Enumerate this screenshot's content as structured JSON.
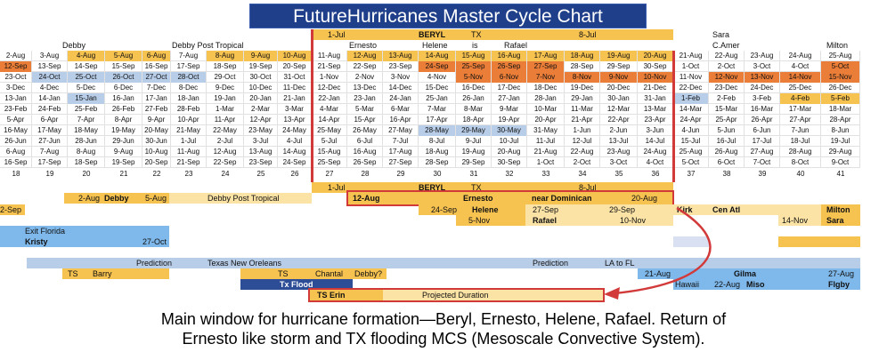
{
  "title": "FutureHurricanes Master Cycle Chart",
  "colors": {
    "title_bg": "#1f3f8a",
    "yellow": "#f6c250",
    "light_yellow": "#fbe3a5",
    "orange": "#ea7d37",
    "light_blue": "#b8cde8",
    "blue": "#7fb8ea",
    "dark_blue": "#2d4d96",
    "red_line": "#d23a3a"
  },
  "top_labels": {
    "jul1": "1-Jul",
    "beryl": "BERYL",
    "tx": "TX",
    "jul8": "8-Jul",
    "sara": "Sara",
    "debby": "Debby",
    "debby_post": "Debby Post Tropical",
    "ernesto": "Ernesto",
    "helene": "Helene",
    "is": "is",
    "rafael": "Rafael",
    "camer": "C.Amer",
    "milton": "Milton"
  },
  "date_rows": [
    [
      "2-Aug",
      "3-Aug",
      "4-Aug",
      "5-Aug",
      "6-Aug",
      "7-Aug",
      "8-Aug",
      "9-Aug",
      "10-Aug",
      "11-Aug",
      "12-Aug",
      "13-Aug",
      "14-Aug",
      "15-Aug",
      "16-Aug",
      "17-Aug",
      "18-Aug",
      "19-Aug",
      "20-Aug",
      "21-Aug",
      "22-Aug",
      "23-Aug",
      "24-Aug",
      "25-Aug"
    ],
    [
      "12-Sep",
      "13-Sep",
      "14-Sep",
      "15-Sep",
      "16-Sep",
      "17-Sep",
      "18-Sep",
      "19-Sep",
      "20-Sep",
      "21-Sep",
      "22-Sep",
      "23-Sep",
      "24-Sep",
      "25-Sep",
      "26-Sep",
      "27-Sep",
      "28-Sep",
      "29-Sep",
      "30-Sep",
      "1-Oct",
      "2-Oct",
      "3-Oct",
      "4-Oct",
      "5-Oct"
    ],
    [
      "23-Oct",
      "24-Oct",
      "25-Oct",
      "26-Oct",
      "27-Oct",
      "28-Oct",
      "29-Oct",
      "30-Oct",
      "31-Oct",
      "1-Nov",
      "2-Nov",
      "3-Nov",
      "4-Nov",
      "5-Nov",
      "6-Nov",
      "7-Nov",
      "8-Nov",
      "9-Nov",
      "10-Nov",
      "11-Nov",
      "12-Nov",
      "13-Nov",
      "14-Nov",
      "15-Nov"
    ],
    [
      "3-Dec",
      "4-Dec",
      "5-Dec",
      "6-Dec",
      "7-Dec",
      "8-Dec",
      "9-Dec",
      "10-Dec",
      "11-Dec",
      "12-Dec",
      "13-Dec",
      "14-Dec",
      "15-Dec",
      "16-Dec",
      "17-Dec",
      "18-Dec",
      "19-Dec",
      "20-Dec",
      "21-Dec",
      "22-Dec",
      "23-Dec",
      "24-Dec",
      "25-Dec",
      "26-Dec"
    ],
    [
      "13-Jan",
      "14-Jan",
      "15-Jan",
      "16-Jan",
      "17-Jan",
      "18-Jan",
      "19-Jan",
      "20-Jan",
      "21-Jan",
      "22-Jan",
      "23-Jan",
      "24-Jan",
      "25-Jan",
      "26-Jan",
      "27-Jan",
      "28-Jan",
      "29-Jan",
      "30-Jan",
      "31-Jan",
      "1-Feb",
      "2-Feb",
      "3-Feb",
      "4-Feb",
      "5-Feb"
    ],
    [
      "23-Feb",
      "24-Feb",
      "25-Feb",
      "26-Feb",
      "27-Feb",
      "28-Feb",
      "1-Mar",
      "2-Mar",
      "3-Mar",
      "4-Mar",
      "5-Mar",
      "6-Mar",
      "7-Mar",
      "8-Mar",
      "9-Mar",
      "10-Mar",
      "11-Mar",
      "12-Mar",
      "13-Mar",
      "14-Mar",
      "15-Mar",
      "16-Mar",
      "17-Mar",
      "18-Mar"
    ],
    [
      "5-Apr",
      "6-Apr",
      "7-Apr",
      "8-Apr",
      "9-Apr",
      "10-Apr",
      "11-Apr",
      "12-Apr",
      "13-Apr",
      "14-Apr",
      "15-Apr",
      "16-Apr",
      "17-Apr",
      "18-Apr",
      "19-Apr",
      "20-Apr",
      "21-Apr",
      "22-Apr",
      "23-Apr",
      "24-Apr",
      "25-Apr",
      "26-Apr",
      "27-Apr",
      "28-Apr"
    ],
    [
      "16-May",
      "17-May",
      "18-May",
      "19-May",
      "20-May",
      "21-May",
      "22-May",
      "23-May",
      "24-May",
      "25-May",
      "26-May",
      "27-May",
      "28-May",
      "29-May",
      "30-May",
      "31-May",
      "1-Jun",
      "2-Jun",
      "3-Jun",
      "4-Jun",
      "5-Jun",
      "6-Jun",
      "7-Jun",
      "8-Jun"
    ],
    [
      "26-Jun",
      "27-Jun",
      "28-Jun",
      "29-Jun",
      "30-Jun",
      "1-Jul",
      "2-Jul",
      "3-Jul",
      "4-Jul",
      "5-Jul",
      "6-Jul",
      "7-Jul",
      "8-Jul",
      "9-Jul",
      "10-Jul",
      "11-Jul",
      "12-Jul",
      "13-Jul",
      "14-Jul",
      "15-Jul",
      "16-Jul",
      "17-Jul",
      "18-Jul",
      "19-Jul"
    ],
    [
      "6-Aug",
      "7-Aug",
      "8-Aug",
      "9-Aug",
      "10-Aug",
      "11-Aug",
      "12-Aug",
      "13-Aug",
      "14-Aug",
      "15-Aug",
      "16-Aug",
      "17-Aug",
      "18-Aug",
      "19-Aug",
      "20-Aug",
      "21-Aug",
      "22-Aug",
      "23-Aug",
      "24-Aug",
      "25-Aug",
      "26-Aug",
      "27-Aug",
      "28-Aug",
      "29-Aug"
    ],
    [
      "16-Sep",
      "17-Sep",
      "18-Sep",
      "19-Sep",
      "20-Sep",
      "21-Sep",
      "22-Sep",
      "23-Sep",
      "24-Sep",
      "25-Sep",
      "26-Sep",
      "27-Sep",
      "28-Sep",
      "29-Sep",
      "30-Sep",
      "1-Oct",
      "2-Oct",
      "3-Oct",
      "4-Oct",
      "5-Oct",
      "6-Oct",
      "7-Oct",
      "8-Oct",
      "9-Oct"
    ]
  ],
  "cycle_numbers": [
    "18",
    "19",
    "20",
    "21",
    "22",
    "23",
    "24",
    "25",
    "26",
    "27",
    "28",
    "29",
    "30",
    "31",
    "32",
    "33",
    "34",
    "35",
    "36",
    "37",
    "38",
    "39",
    "40",
    "41"
  ],
  "events": {
    "jul1_b": "1-Jul",
    "beryl_b": "BERYL",
    "tx_b": "TX",
    "jul8_b": "8-Jul",
    "debby_aug2": "2-Aug",
    "debby_name": "Debby",
    "debby_aug5": "5-Aug",
    "debby_post": "Debby Post Tropical",
    "ernesto_start": "12-Aug",
    "ernesto_name": "Ernesto",
    "ernesto_loc": "near Dominican",
    "ernesto_end": "20-Aug",
    "sep2": "2-Sep",
    "helene_start": "24-Sep",
    "helene_name": "Helene",
    "helene_mid": "27-Sep",
    "helene_end": "29-Sep",
    "kirk": "Kirk",
    "cen_atl": "Cen Atl",
    "milton": "Milton",
    "rafael_start": "5-Nov",
    "rafael_name": "Rafael",
    "rafael_end": "10-Nov",
    "sara_date": "14-Nov",
    "sara_name": "Sara",
    "exit_florida": "Exit Florida",
    "kristy": "Kristy",
    "oct27": "27-Oct",
    "prediction1": "Prediction",
    "tx_no": "Texas New Oreleans",
    "prediction2": "Prediction",
    "la_fl": "LA to FL",
    "ts1": "TS",
    "barry": "Barry",
    "ts2": "TS",
    "chantal": "Chantal",
    "debby_q": "Debby?",
    "aug21": "21-Aug",
    "gilma": "Gilma",
    "aug27": "27-Aug",
    "hawaii": "Hawaii",
    "aug22": "22-Aug",
    "miso": "Miso",
    "flgby": "Flgby",
    "tx_flood": "Tx Flood",
    "ts_erin": "TS Erin",
    "projected": "Projected Duration"
  },
  "caption_lines": [
    "Main window for hurricane formation—Beryl, Ernesto, Helene, Rafael.  Return of",
    "Ernesto like storm and TX flooding MCS (Mesoscale Convective System)."
  ]
}
